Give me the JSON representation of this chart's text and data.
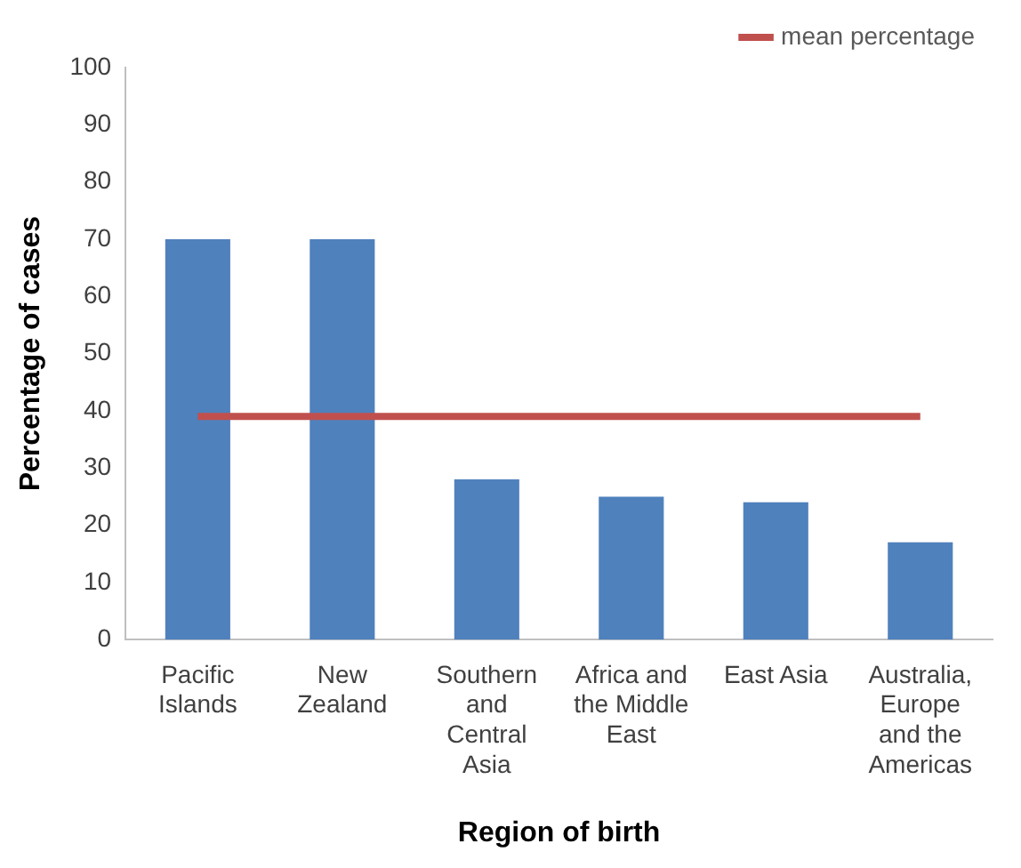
{
  "chart_data": {
    "type": "bar",
    "xlabel": "Region of birth",
    "ylabel": "Percentage of cases",
    "categories": [
      "Pacific Islands",
      "New Zealand",
      "Southern and Central Asia",
      "Africa and the Middle East",
      "East Asia",
      "Australia, Europe and the Americas"
    ],
    "series": [
      {
        "color": "#4f81bd",
        "values": [
          70,
          70,
          28,
          25,
          24,
          17
        ]
      },
      {
        "type": "line",
        "name": "mean percentage",
        "color": "#c0504d",
        "values": [
          39,
          39,
          39,
          39,
          39,
          39
        ]
      }
    ],
    "ylim": [
      0,
      100
    ],
    "yticks": [
      0,
      10,
      20,
      30,
      40,
      50,
      60,
      70,
      80,
      90,
      100
    ],
    "grid": false,
    "legend": "top right",
    "marker": "none"
  }
}
